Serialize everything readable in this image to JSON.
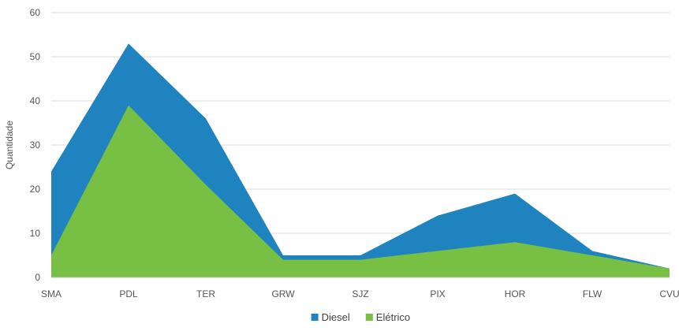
{
  "chart_data": {
    "type": "area",
    "categories": [
      "SMA",
      "PDL",
      "TER",
      "GRW",
      "SJZ",
      "PIX",
      "HOR",
      "FLW",
      "CVU"
    ],
    "series": [
      {
        "name": "Diesel",
        "color": "#1f83c0",
        "values": [
          24,
          53,
          36,
          5,
          5,
          14,
          19,
          6,
          2
        ]
      },
      {
        "name": "Elétrico",
        "color": "#78c043",
        "values": [
          5,
          39,
          21,
          4,
          4,
          6,
          8,
          5,
          2
        ]
      }
    ],
    "ylabel": "Quantidade",
    "ylim": [
      0,
      60
    ],
    "yticks": [
      0,
      10,
      20,
      30,
      40,
      50,
      60
    ],
    "grid": true,
    "legend": "bottom"
  }
}
